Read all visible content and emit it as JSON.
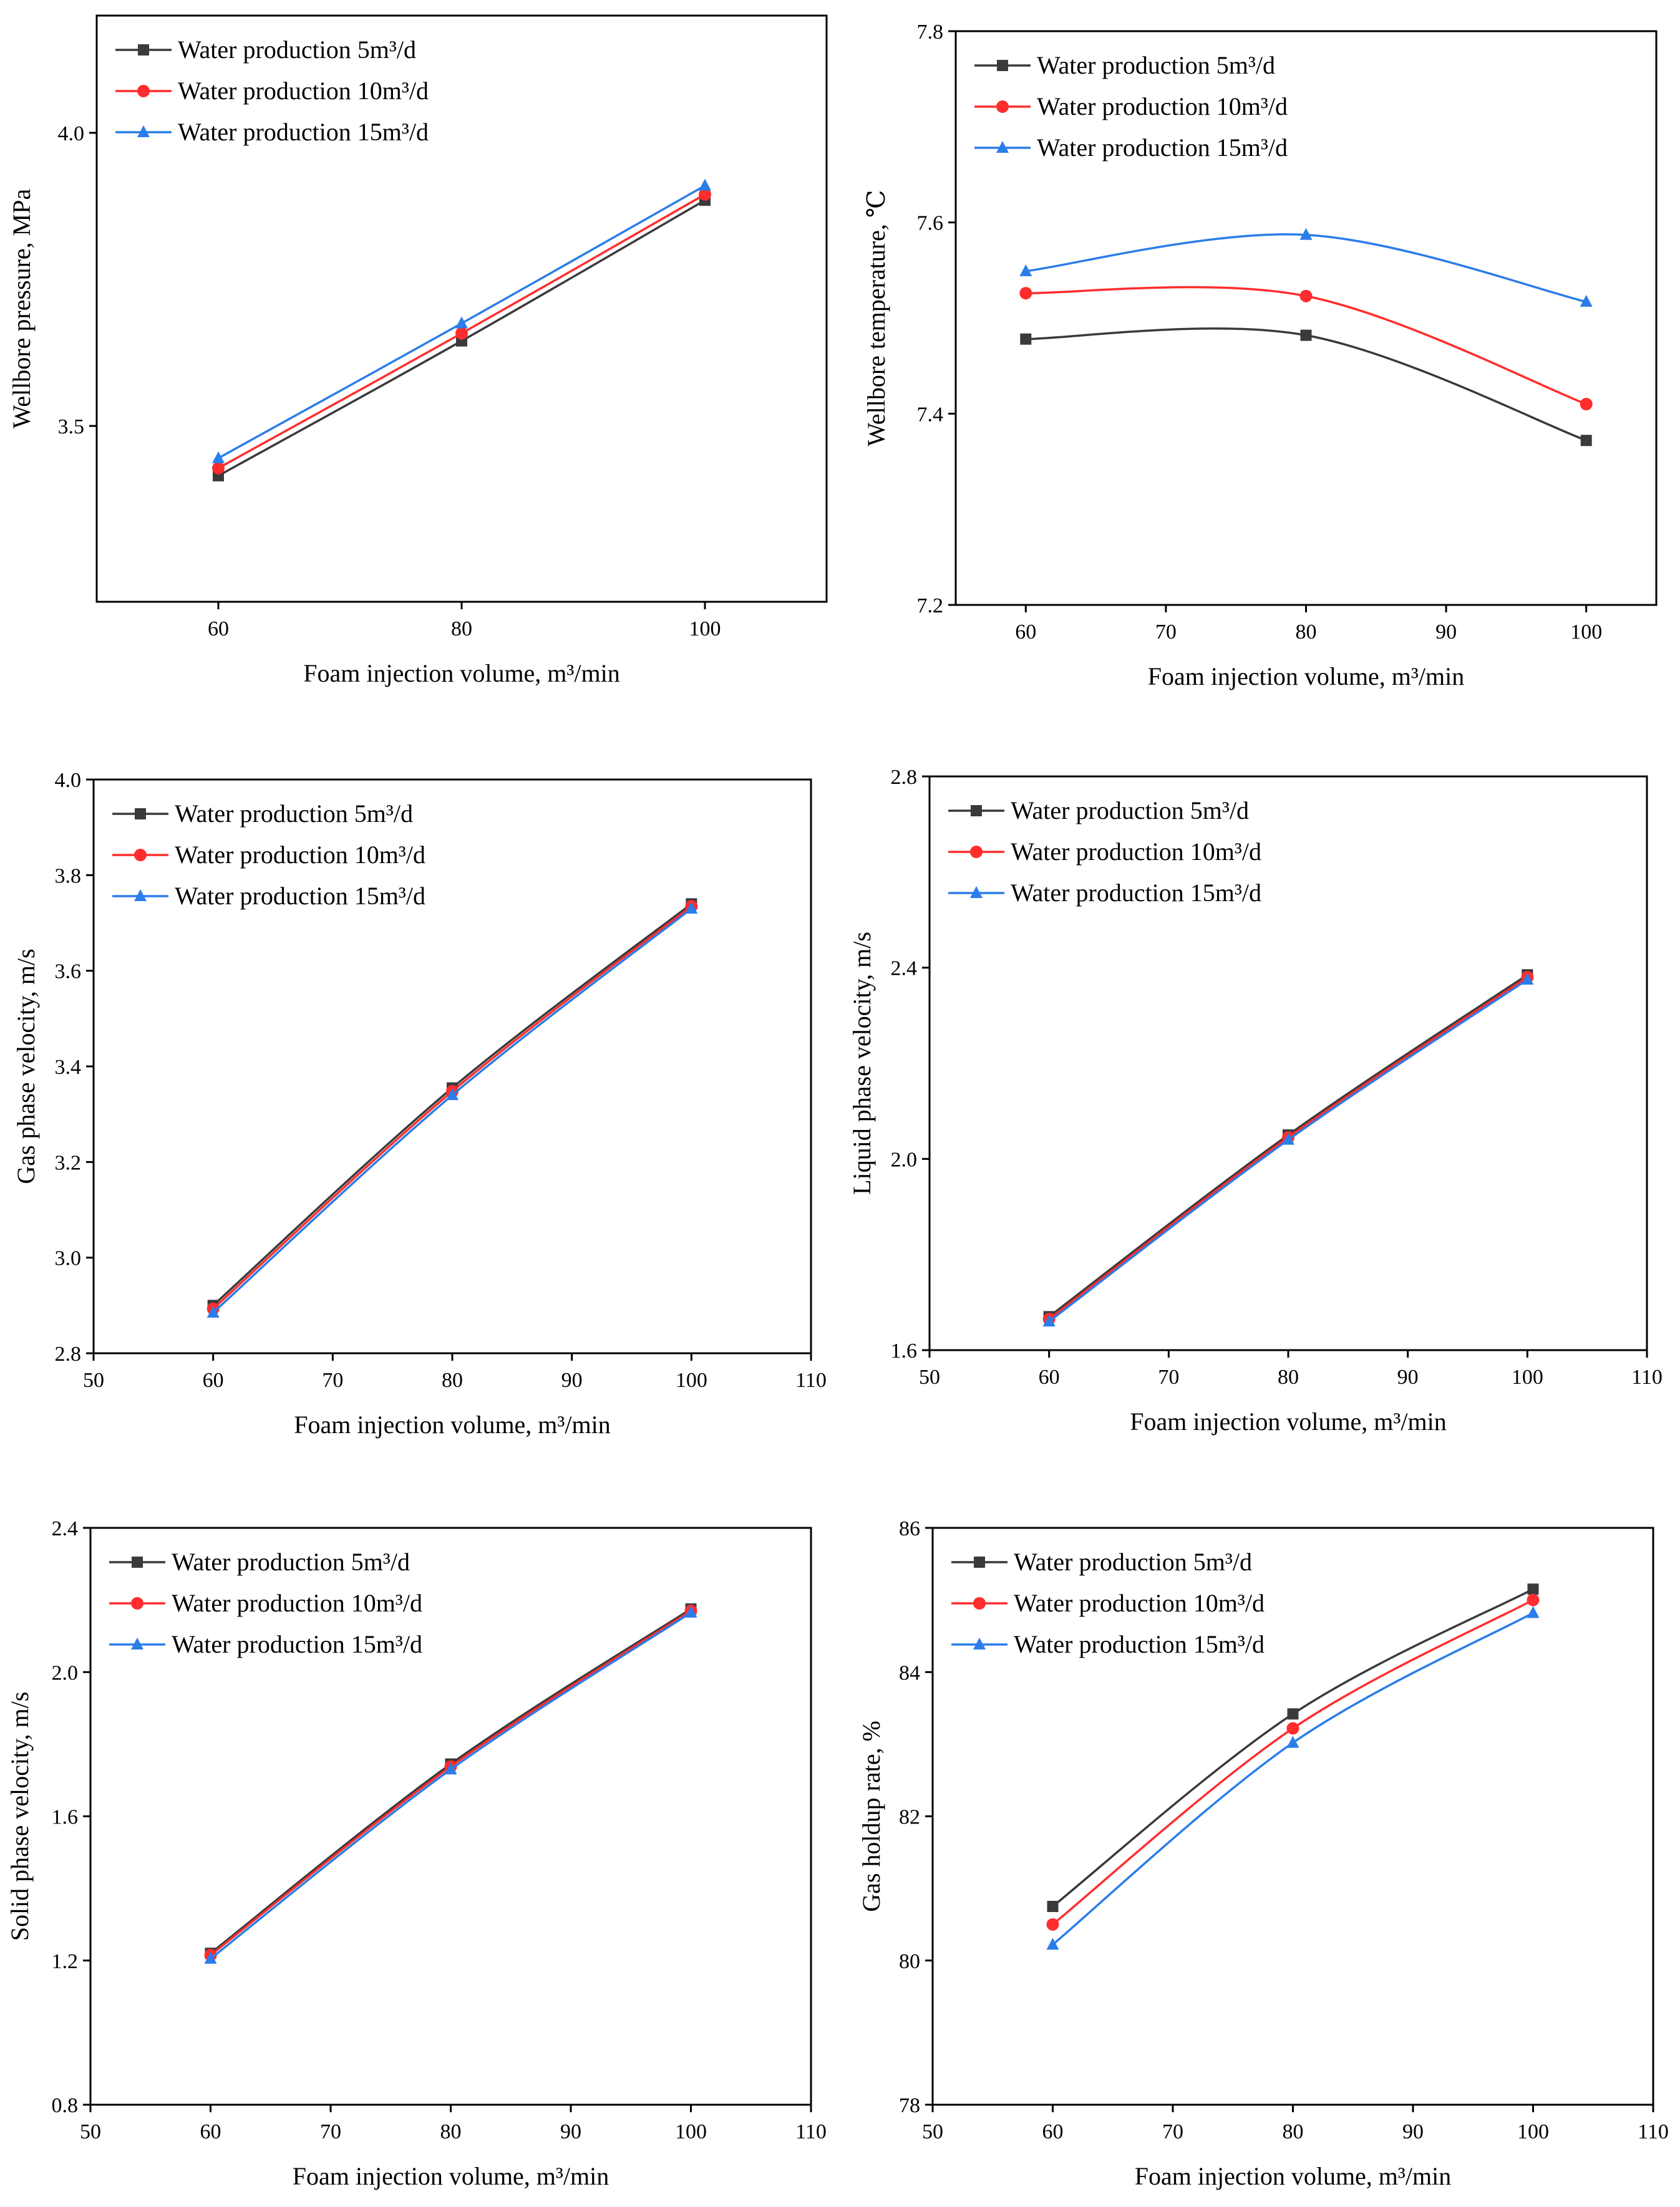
{
  "legend_labels": [
    "Water production 5m³/d",
    "Water production 10m³/d",
    "Water production 15m³/d"
  ],
  "series_colors": [
    "#3a3a3a",
    "#ff2d2d",
    "#2b7de9"
  ],
  "marker_shapes": [
    "square",
    "circle",
    "triangle"
  ],
  "chart_data": [
    {
      "type": "line",
      "title": "",
      "xlabel": "Foam injection volume, m³/min",
      "ylabel": "Wellbore pressure, MPa",
      "xlim": [
        50,
        110
      ],
      "ylim": [
        3.2,
        4.2
      ],
      "xticks": [
        60,
        80,
        100
      ],
      "yticks": [
        3.5,
        4.0
      ],
      "x": [
        60,
        80,
        100
      ],
      "series": [
        {
          "name": "Water production 5m³/d",
          "values": [
            3.415,
            3.645,
            3.885
          ]
        },
        {
          "name": "Water production 10m³/d",
          "values": [
            3.428,
            3.658,
            3.895
          ]
        },
        {
          "name": "Water production 15m³/d",
          "values": [
            3.445,
            3.675,
            3.91
          ]
        }
      ],
      "legend_position": "top-left"
    },
    {
      "type": "line",
      "title": "",
      "xlabel": "Foam injection volume, m³/min",
      "ylabel": "Wellbore temperature, ℃",
      "xlim": [
        55,
        105
      ],
      "ylim": [
        7.2,
        7.8
      ],
      "xticks": [
        60,
        70,
        80,
        90,
        100
      ],
      "yticks": [
        7.2,
        7.4,
        7.6,
        7.8
      ],
      "x": [
        60,
        80,
        100
      ],
      "series": [
        {
          "name": "Water production 5m³/d",
          "values": [
            7.478,
            7.482,
            7.372
          ]
        },
        {
          "name": "Water production 10m³/d",
          "values": [
            7.526,
            7.523,
            7.41
          ]
        },
        {
          "name": "Water production 15m³/d",
          "values": [
            7.549,
            7.587,
            7.517
          ]
        }
      ],
      "legend_position": "top-left"
    },
    {
      "type": "line",
      "title": "",
      "xlabel": "Foam injection volume, m³/min",
      "ylabel": "Gas phase velocity, m/s",
      "xlim": [
        50,
        110
      ],
      "ylim": [
        2.8,
        4.0
      ],
      "xticks": [
        50,
        60,
        70,
        80,
        90,
        100,
        110
      ],
      "yticks": [
        2.8,
        3.0,
        3.2,
        3.4,
        3.6,
        3.8,
        4.0
      ],
      "x": [
        60,
        80,
        100
      ],
      "series": [
        {
          "name": "Water production 5m³/d",
          "values": [
            2.9,
            3.355,
            3.74
          ]
        },
        {
          "name": "Water production 10m³/d",
          "values": [
            2.893,
            3.348,
            3.735
          ]
        },
        {
          "name": "Water production 15m³/d",
          "values": [
            2.885,
            3.34,
            3.73
          ]
        }
      ],
      "legend_position": "top-left"
    },
    {
      "type": "line",
      "title": "",
      "xlabel": "Foam injection volume, m³/min",
      "ylabel": "Liquid phase velocity, m/s",
      "xlim": [
        50,
        110
      ],
      "ylim": [
        1.6,
        2.8
      ],
      "xticks": [
        50,
        60,
        70,
        80,
        90,
        100,
        110
      ],
      "yticks": [
        1.6,
        2.0,
        2.4,
        2.8
      ],
      "x": [
        60,
        80,
        100
      ],
      "series": [
        {
          "name": "Water production 5m³/d",
          "values": [
            1.67,
            2.05,
            2.385
          ]
        },
        {
          "name": "Water production 10m³/d",
          "values": [
            1.665,
            2.045,
            2.38
          ]
        },
        {
          "name": "Water production 15m³/d",
          "values": [
            1.66,
            2.04,
            2.375
          ]
        }
      ],
      "legend_position": "top-left"
    },
    {
      "type": "line",
      "title": "",
      "xlabel": "Foam injection volume, m³/min",
      "ylabel": "Solid phase velocity, m/s",
      "xlim": [
        50,
        110
      ],
      "ylim": [
        0.8,
        2.4
      ],
      "xticks": [
        50,
        60,
        70,
        80,
        90,
        100,
        110
      ],
      "yticks": [
        0.8,
        1.2,
        1.6,
        2.0,
        2.4
      ],
      "x": [
        60,
        80,
        100
      ],
      "series": [
        {
          "name": "Water production 5m³/d",
          "values": [
            1.22,
            1.745,
            2.175
          ]
        },
        {
          "name": "Water production 10m³/d",
          "values": [
            1.215,
            1.738,
            2.17
          ]
        },
        {
          "name": "Water production 15m³/d",
          "values": [
            1.205,
            1.73,
            2.165
          ]
        }
      ],
      "legend_position": "top-left"
    },
    {
      "type": "line",
      "title": "",
      "xlabel": "Foam injection volume, m³/min",
      "ylabel": "Gas holdup rate, %",
      "xlim": [
        50,
        110
      ],
      "ylim": [
        78,
        86
      ],
      "xticks": [
        50,
        60,
        70,
        80,
        90,
        100,
        110
      ],
      "yticks": [
        78,
        80,
        82,
        84,
        86
      ],
      "x": [
        60,
        80,
        100
      ],
      "series": [
        {
          "name": "Water production 5m³/d",
          "values": [
            80.75,
            83.42,
            85.15
          ]
        },
        {
          "name": "Water production 10m³/d",
          "values": [
            80.5,
            83.22,
            85.0
          ]
        },
        {
          "name": "Water production 15m³/d",
          "values": [
            80.22,
            83.02,
            84.82
          ]
        }
      ],
      "legend_position": "top-left"
    }
  ]
}
